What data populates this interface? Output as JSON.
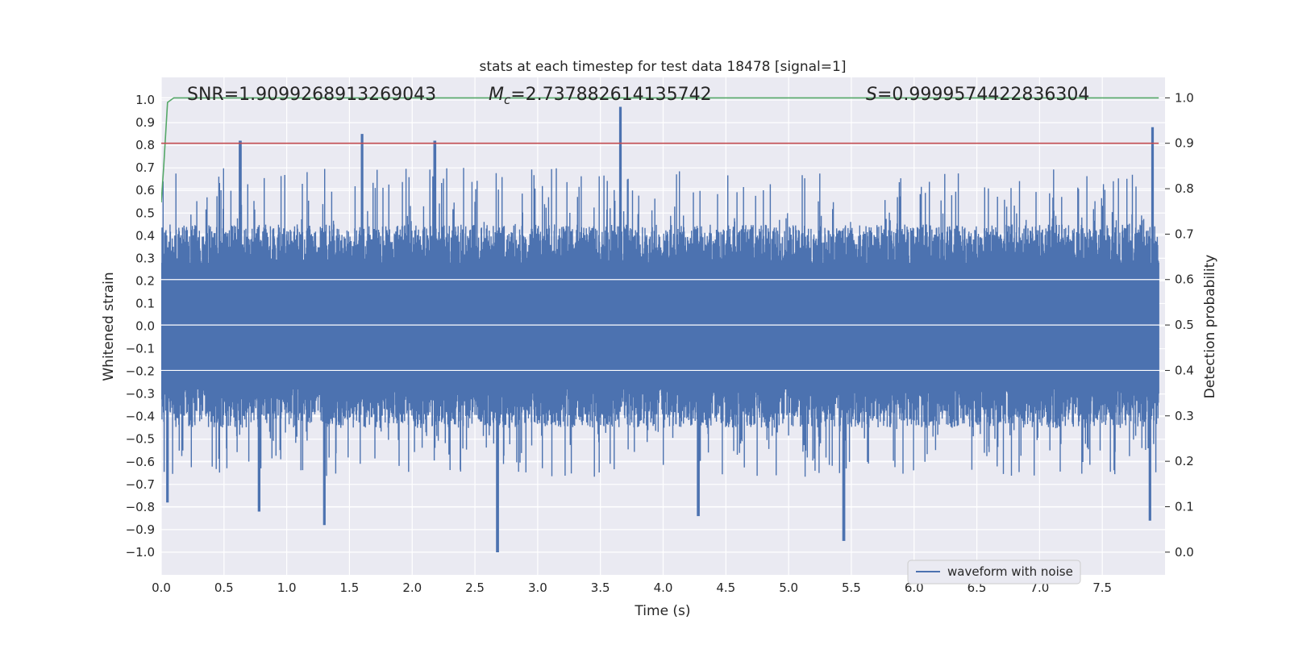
{
  "chart_data": {
    "type": "line",
    "title": "stats at each timestep for test data 18478 [signal=1]",
    "xlabel": "Time (s)",
    "ylabel": "Whitened strain",
    "y2label": "Detection probability",
    "xlim": [
      0.0,
      8.0
    ],
    "ylim": [
      -1.1,
      1.1
    ],
    "y2lim": [
      -0.05,
      1.045
    ],
    "xticks": [
      "0.0",
      "0.5",
      "1.0",
      "1.5",
      "2.0",
      "2.5",
      "3.0",
      "3.5",
      "4.0",
      "4.5",
      "5.0",
      "5.5",
      "6.0",
      "6.5",
      "7.0",
      "7.5"
    ],
    "yticks": [
      "1.0",
      "0.9",
      "0.8",
      "0.7",
      "0.6",
      "0.5",
      "0.4",
      "0.3",
      "0.2",
      "0.1",
      "0.0",
      "−0.1",
      "−0.2",
      "−0.3",
      "−0.4",
      "−0.5",
      "−0.6",
      "−0.7",
      "−0.8",
      "−0.9",
      "−1.0"
    ],
    "y2ticks": [
      "1.0",
      "0.9",
      "0.8",
      "0.7",
      "0.6",
      "0.5",
      "0.4",
      "0.3",
      "0.2",
      "0.1",
      "0.0"
    ],
    "grid": true,
    "legend": {
      "location": "lower-right",
      "entries": [
        "waveform with noise"
      ]
    },
    "annotations": {
      "snr": "SNR=1.9099268913269043",
      "mc": "=2.737882614135742",
      "mc_symbol": "M",
      "mc_sub": "c",
      "s": "=0.9999574422836304",
      "s_symbol": "S"
    },
    "series": [
      {
        "name": "waveform with noise",
        "axis": "left",
        "description": "dense noisy whitened strain, approx. uniform amplitude ±0.4 with spikes",
        "x_range": [
          0.0,
          7.95
        ],
        "envelope": [
          -1.0,
          0.97
        ],
        "notable_peaks": [
          {
            "x": 0.63,
            "y": 0.82
          },
          {
            "x": 1.6,
            "y": 0.85
          },
          {
            "x": 2.18,
            "y": 0.82
          },
          {
            "x": 3.66,
            "y": 0.97
          },
          {
            "x": 7.9,
            "y": 0.88
          }
        ],
        "notable_troughs": [
          {
            "x": 0.05,
            "y": -0.78
          },
          {
            "x": 0.78,
            "y": -0.82
          },
          {
            "x": 1.3,
            "y": -0.88
          },
          {
            "x": 2.68,
            "y": -1.0
          },
          {
            "x": 4.28,
            "y": -0.84
          },
          {
            "x": 5.44,
            "y": -0.95
          },
          {
            "x": 7.88,
            "y": -0.86
          }
        ]
      },
      {
        "axis": "right",
        "color": "#55a868",
        "x": [
          0.0,
          0.02,
          0.05,
          0.1,
          0.2,
          1.0,
          2.0,
          3.0,
          4.0,
          5.0,
          6.0,
          7.0,
          7.95
        ],
        "values": [
          0.77,
          0.85,
          0.99,
          1.0,
          1.0,
          1.0,
          1.0,
          1.0,
          1.0,
          1.0,
          1.0,
          1.0,
          1.0
        ]
      },
      {
        "axis": "right",
        "color": "#c44e52",
        "x": [
          0.0,
          7.95
        ],
        "values": [
          0.9,
          0.9
        ]
      }
    ],
    "colors": {
      "background": "#eaeaf2",
      "grid": "#ffffff",
      "waveform": "#4c72b0"
    }
  }
}
